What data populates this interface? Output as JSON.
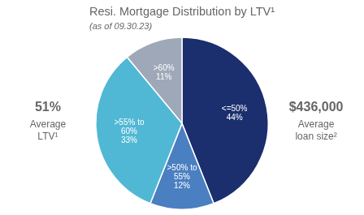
{
  "chart_data": {
    "type": "pie",
    "title": "Resi. Mortgage Distribution by LTV¹",
    "subtitle": "(as of 09.30.23)",
    "categories": [
      "<=50%",
      ">50% to\n55%",
      ">55% to\n60%",
      ">60%"
    ],
    "values": [
      44,
      12,
      33,
      11
    ],
    "value_labels": [
      "44%",
      "12%",
      "33%",
      "11%"
    ],
    "data_labels": true,
    "colors": [
      "#1b2f6e",
      "#4a7fc1",
      "#50b8d4",
      "#9ea8b8"
    ],
    "annotations": [
      {
        "label": "51%",
        "text": "Average\nLTV¹"
      },
      {
        "label": "$436,000",
        "text": "Average\nloan size²"
      }
    ]
  }
}
